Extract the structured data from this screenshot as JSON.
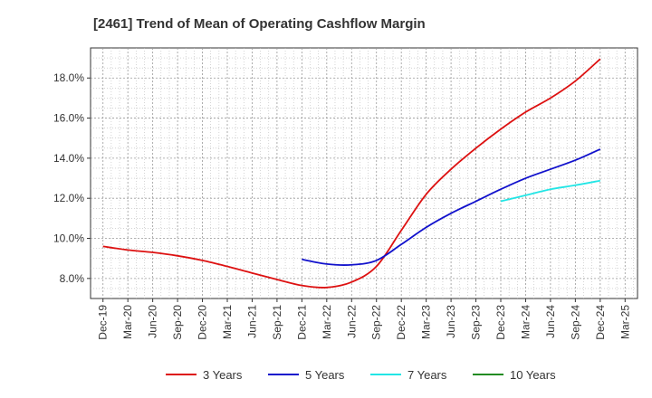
{
  "chart_data": {
    "type": "line",
    "title": "[2461]  Trend of Mean of Operating Cashflow Margin",
    "xlabel": "",
    "ylabel": "",
    "x_ticks": [
      "Dec-19",
      "Mar-20",
      "Jun-20",
      "Sep-20",
      "Dec-20",
      "Mar-21",
      "Jun-21",
      "Sep-21",
      "Dec-21",
      "Mar-22",
      "Jun-22",
      "Sep-22",
      "Dec-22",
      "Mar-23",
      "Jun-23",
      "Sep-23",
      "Dec-23",
      "Mar-24",
      "Jun-24",
      "Sep-24",
      "Dec-24",
      "Mar-25"
    ],
    "y_ticks": [
      "8.0%",
      "10.0%",
      "12.0%",
      "14.0%",
      "16.0%",
      "18.0%"
    ],
    "y_tick_values": [
      8,
      10,
      12,
      14,
      16,
      18
    ],
    "ylim": [
      7.0,
      19.5
    ],
    "grid": true,
    "legend_position": "bottom",
    "series": [
      {
        "name": "3 Years",
        "color": "#dd1111",
        "x": [
          "Dec-19",
          "Mar-20",
          "Jun-20",
          "Sep-20",
          "Dec-20",
          "Mar-21",
          "Jun-21",
          "Sep-21",
          "Dec-21",
          "Mar-22",
          "Jun-22",
          "Sep-22",
          "Dec-22",
          "Mar-23",
          "Jun-23",
          "Sep-23",
          "Dec-23",
          "Mar-24",
          "Jun-24",
          "Sep-24",
          "Dec-24"
        ],
        "values": [
          9.6,
          9.42,
          9.3,
          9.13,
          8.9,
          8.6,
          8.27,
          7.95,
          7.65,
          7.55,
          7.82,
          8.6,
          10.4,
          12.2,
          13.45,
          14.5,
          15.45,
          16.3,
          17.0,
          17.85,
          18.95
        ]
      },
      {
        "name": "5 Years",
        "color": "#1111cc",
        "x": [
          "Dec-21",
          "Mar-22",
          "Jun-22",
          "Sep-22",
          "Dec-22",
          "Mar-23",
          "Jun-23",
          "Sep-23",
          "Dec-23",
          "Mar-24",
          "Jun-24",
          "Sep-24",
          "Dec-24"
        ],
        "values": [
          8.95,
          8.72,
          8.68,
          8.9,
          9.7,
          10.55,
          11.25,
          11.85,
          12.45,
          13.0,
          13.45,
          13.9,
          14.45
        ]
      },
      {
        "name": "7 Years",
        "color": "#22e5e5",
        "x": [
          "Dec-23",
          "Mar-24",
          "Jun-24",
          "Sep-24",
          "Dec-24"
        ],
        "values": [
          11.85,
          12.15,
          12.45,
          12.65,
          12.88
        ]
      },
      {
        "name": "10 Years",
        "color": "#228b22",
        "x": [],
        "values": []
      }
    ]
  }
}
